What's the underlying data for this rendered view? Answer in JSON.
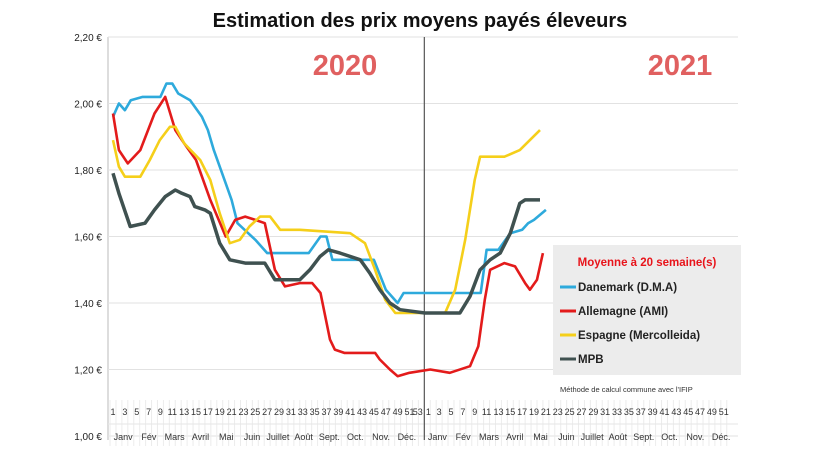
{
  "chart_data": {
    "type": "line",
    "title": "Estimation des prix moyens payés éleveurs",
    "year_labels": [
      "2020",
      "2021"
    ],
    "ylim": [
      1.0,
      2.2
    ],
    "yticks": [
      "1,00 €",
      "1,20 €",
      "1,40 €",
      "1,60 €",
      "1,80 €",
      "2,00 €",
      "2,20 €"
    ],
    "ytick_values": [
      1.0,
      1.2,
      1.4,
      1.6,
      1.8,
      2.0,
      2.2
    ],
    "x_unit": "week (2020 weeks 1–53, then 2021 weeks 1–52 continuing as 54–105)",
    "xlim": [
      1,
      105
    ],
    "year_divider_week": 53.5,
    "xtick_labels_2020": [
      "1",
      "3",
      "5",
      "7",
      "9",
      "11",
      "13",
      "15",
      "17",
      "19",
      "21",
      "23",
      "25",
      "27",
      "29",
      "31",
      "33",
      "35",
      "37",
      "39",
      "41",
      "43",
      "45",
      "47",
      "49",
      "51",
      "53"
    ],
    "xtick_labels_2021": [
      "1",
      "3",
      "5",
      "7",
      "9",
      "11",
      "13",
      "15",
      "17",
      "19",
      "21",
      "23",
      "25",
      "27",
      "29",
      "31",
      "33",
      "35",
      "37",
      "39",
      "41",
      "43",
      "45",
      "47",
      "49",
      "51"
    ],
    "months": [
      "Janv",
      "Fév",
      "Mars",
      "Avril",
      "Mai",
      "Juin",
      "Juillet",
      "Août",
      "Sept.",
      "Oct.",
      "Nov.",
      "Déc."
    ],
    "grid": "horizontal",
    "legend": {
      "title": "Moyenne à  20 semaine(s)",
      "placement": "bottom-right",
      "note": "Méthode de calcul commune avec l'IFIP"
    },
    "series": [
      {
        "name": "Danemark (D.M.A)",
        "color": "#2eaadc",
        "points": [
          [
            1,
            1.96
          ],
          [
            2,
            2.0
          ],
          [
            3,
            1.98
          ],
          [
            4,
            2.01
          ],
          [
            6,
            2.02
          ],
          [
            9,
            2.02
          ],
          [
            10,
            2.06
          ],
          [
            11,
            2.06
          ],
          [
            12,
            2.03
          ],
          [
            14,
            2.01
          ],
          [
            16,
            1.96
          ],
          [
            17,
            1.92
          ],
          [
            18,
            1.86
          ],
          [
            20,
            1.76
          ],
          [
            21,
            1.71
          ],
          [
            22,
            1.64
          ],
          [
            25,
            1.59
          ],
          [
            27,
            1.55
          ],
          [
            34,
            1.55
          ],
          [
            36,
            1.6
          ],
          [
            37,
            1.6
          ],
          [
            38,
            1.53
          ],
          [
            45,
            1.53
          ],
          [
            47,
            1.44
          ],
          [
            49,
            1.4
          ],
          [
            50,
            1.43
          ],
          [
            55,
            1.43
          ],
          [
            63,
            1.43
          ],
          [
            64,
            1.56
          ],
          [
            66,
            1.56
          ],
          [
            68,
            1.61
          ],
          [
            70,
            1.62
          ],
          [
            71,
            1.64
          ],
          [
            72,
            1.65
          ],
          [
            74,
            1.68
          ]
        ]
      },
      {
        "name": "Allemagne (AMI)",
        "color": "#e31b1b",
        "points": [
          [
            1,
            1.97
          ],
          [
            2,
            1.86
          ],
          [
            3.5,
            1.82
          ],
          [
            5.6,
            1.86
          ],
          [
            8,
            1.97
          ],
          [
            9.8,
            2.02
          ],
          [
            11.5,
            1.92
          ],
          [
            13,
            1.88
          ],
          [
            15,
            1.83
          ],
          [
            17.4,
            1.71
          ],
          [
            20,
            1.6
          ],
          [
            21.6,
            1.65
          ],
          [
            23.3,
            1.66
          ],
          [
            25,
            1.65
          ],
          [
            26.6,
            1.64
          ],
          [
            28.3,
            1.5
          ],
          [
            30,
            1.45
          ],
          [
            32.5,
            1.46
          ],
          [
            34.6,
            1.46
          ],
          [
            36,
            1.43
          ],
          [
            37.6,
            1.29
          ],
          [
            38.4,
            1.26
          ],
          [
            40,
            1.25
          ],
          [
            45.2,
            1.25
          ],
          [
            46,
            1.23
          ],
          [
            47.7,
            1.2
          ],
          [
            49,
            1.18
          ],
          [
            51,
            1.19
          ],
          [
            54.5,
            1.2
          ],
          [
            57.8,
            1.19
          ],
          [
            61.2,
            1.21
          ],
          [
            62.6,
            1.27
          ],
          [
            63.7,
            1.41
          ],
          [
            64.6,
            1.5
          ],
          [
            67,
            1.52
          ],
          [
            68.8,
            1.51
          ],
          [
            70.5,
            1.46
          ],
          [
            71.3,
            1.44
          ],
          [
            72.5,
            1.47
          ],
          [
            73.5,
            1.55
          ]
        ]
      },
      {
        "name": "Espagne (Mercolleida)",
        "color": "#f5cf1a",
        "points": [
          [
            1,
            1.89
          ],
          [
            2,
            1.81
          ],
          [
            3,
            1.78
          ],
          [
            5.6,
            1.78
          ],
          [
            7.2,
            1.83
          ],
          [
            8.9,
            1.89
          ],
          [
            10.6,
            1.93
          ],
          [
            11.5,
            1.93
          ],
          [
            13,
            1.88
          ],
          [
            15.7,
            1.83
          ],
          [
            17.4,
            1.77
          ],
          [
            19,
            1.67
          ],
          [
            20.7,
            1.58
          ],
          [
            22.4,
            1.59
          ],
          [
            24,
            1.63
          ],
          [
            25.8,
            1.66
          ],
          [
            27.5,
            1.66
          ],
          [
            29.2,
            1.62
          ],
          [
            32.5,
            1.62
          ],
          [
            41,
            1.61
          ],
          [
            43.5,
            1.58
          ],
          [
            45.2,
            1.5
          ],
          [
            46.9,
            1.41
          ],
          [
            48.6,
            1.37
          ],
          [
            54.5,
            1.37
          ],
          [
            57,
            1.37
          ],
          [
            58.7,
            1.44
          ],
          [
            60.4,
            1.59
          ],
          [
            62,
            1.77
          ],
          [
            62.9,
            1.84
          ],
          [
            67,
            1.84
          ],
          [
            69.6,
            1.86
          ],
          [
            73,
            1.92
          ]
        ]
      },
      {
        "name": "MPB",
        "color": "#3f5150",
        "points": [
          [
            1,
            1.79
          ],
          [
            2,
            1.73
          ],
          [
            3.9,
            1.63
          ],
          [
            6.4,
            1.64
          ],
          [
            8,
            1.68
          ],
          [
            9.8,
            1.72
          ],
          [
            11.5,
            1.74
          ],
          [
            12.6,
            1.73
          ],
          [
            14,
            1.72
          ],
          [
            14.8,
            1.69
          ],
          [
            16.5,
            1.68
          ],
          [
            17.4,
            1.67
          ],
          [
            19,
            1.58
          ],
          [
            20.7,
            1.53
          ],
          [
            23.3,
            1.52
          ],
          [
            26.6,
            1.52
          ],
          [
            28.3,
            1.47
          ],
          [
            32.5,
            1.47
          ],
          [
            34.2,
            1.5
          ],
          [
            35.9,
            1.54
          ],
          [
            37.3,
            1.56
          ],
          [
            39.3,
            1.55
          ],
          [
            42.7,
            1.53
          ],
          [
            44.3,
            1.49
          ],
          [
            46,
            1.44
          ],
          [
            47.7,
            1.4
          ],
          [
            49.4,
            1.38
          ],
          [
            53.6,
            1.37
          ],
          [
            57.8,
            1.37
          ],
          [
            59.5,
            1.37
          ],
          [
            61.2,
            1.42
          ],
          [
            62.9,
            1.5
          ],
          [
            64.6,
            1.53
          ],
          [
            66.3,
            1.55
          ],
          [
            68,
            1.61
          ],
          [
            69.6,
            1.7
          ],
          [
            70.5,
            1.71
          ],
          [
            73,
            1.71
          ]
        ]
      }
    ]
  }
}
